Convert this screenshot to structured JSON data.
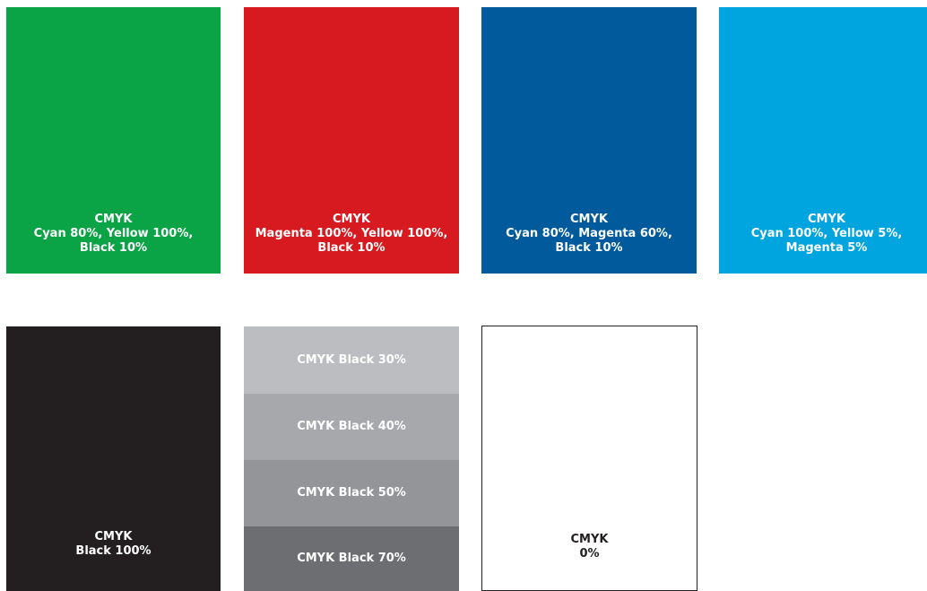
{
  "swatches_row1": [
    {
      "id": "green",
      "color": "#0aa345",
      "lines": [
        "CMYK",
        "Cyan 80%, Yellow 100%,",
        "Black 10%"
      ]
    },
    {
      "id": "red",
      "color": "#d71920",
      "lines": [
        "CMYK",
        "Magenta 100%, Yellow 100%,",
        "Black 10%"
      ]
    },
    {
      "id": "blue",
      "color": "#005a9c",
      "lines": [
        "CMYK",
        "Cyan 80%, Magenta 60%,",
        "Black 10%"
      ]
    },
    {
      "id": "cyan",
      "color": "#00a5df",
      "lines": [
        "CMYK",
        "Cyan 100%, Yellow 5%,",
        "Magenta 5%"
      ]
    }
  ],
  "black_swatch": {
    "color": "#231f20",
    "lines": [
      "CMYK",
      "Black 100%"
    ]
  },
  "gray_bands": [
    {
      "label": "CMYK Black 30%",
      "color": "#bcbdc0"
    },
    {
      "label": "CMYK Black 40%",
      "color": "#a6a8ab"
    },
    {
      "label": "CMYK Black 50%",
      "color": "#939598"
    },
    {
      "label": "CMYK Black 70%",
      "color": "#6d6e71"
    }
  ],
  "white_swatch": {
    "color": "#ffffff",
    "border_color": "#231f20",
    "text_color": "#231f20",
    "lines": [
      "CMYK",
      "0%"
    ]
  }
}
